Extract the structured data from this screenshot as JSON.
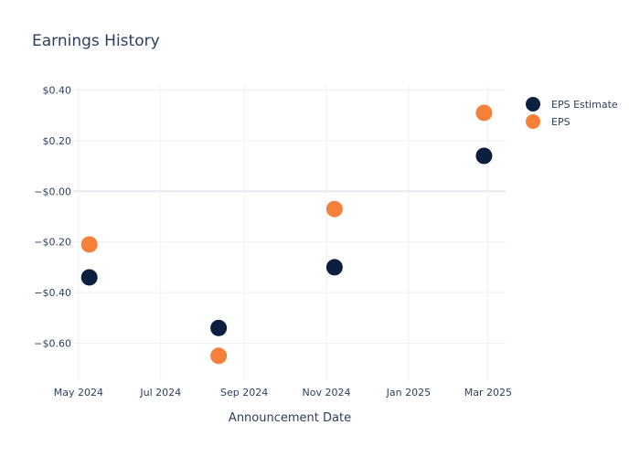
{
  "chart_data": {
    "type": "scatter",
    "title": "Earnings History",
    "xlabel": "Announcement Date",
    "ylabel": "",
    "x_ticks": [
      {
        "date": "2024-05-01",
        "label": "May 2024"
      },
      {
        "date": "2024-07-01",
        "label": "Jul 2024"
      },
      {
        "date": "2024-09-01",
        "label": "Sep 2024"
      },
      {
        "date": "2024-11-01",
        "label": "Nov 2024"
      },
      {
        "date": "2025-01-01",
        "label": "Jan 2025"
      },
      {
        "date": "2025-03-01",
        "label": "Mar 2025"
      }
    ],
    "y_ticks": [
      {
        "value": 0.4,
        "label": "$0.40"
      },
      {
        "value": 0.2,
        "label": "$0.20"
      },
      {
        "value": 0.0,
        "label": "−$0.00"
      },
      {
        "value": -0.2,
        "label": "−$0.20"
      },
      {
        "value": -0.4,
        "label": "−$0.40"
      },
      {
        "value": -0.6,
        "label": "−$0.60"
      }
    ],
    "xlim": [
      "2024-04-27",
      "2025-03-14"
    ],
    "ylim": [
      -0.75,
      0.42
    ],
    "grid": true,
    "legend_position": "top-right",
    "series": [
      {
        "name": "EPS Estimate",
        "color": "#0b1f3f",
        "points": [
          {
            "x": "2024-05-09",
            "y": -0.34
          },
          {
            "x": "2024-08-13",
            "y": -0.54
          },
          {
            "x": "2024-11-07",
            "y": -0.3
          },
          {
            "x": "2025-02-26",
            "y": 0.14
          }
        ]
      },
      {
        "name": "EPS",
        "color": "#f5803a",
        "points": [
          {
            "x": "2024-05-09",
            "y": -0.21
          },
          {
            "x": "2024-08-13",
            "y": -0.65
          },
          {
            "x": "2024-11-07",
            "y": -0.07
          },
          {
            "x": "2025-02-26",
            "y": 0.31
          }
        ]
      }
    ]
  }
}
